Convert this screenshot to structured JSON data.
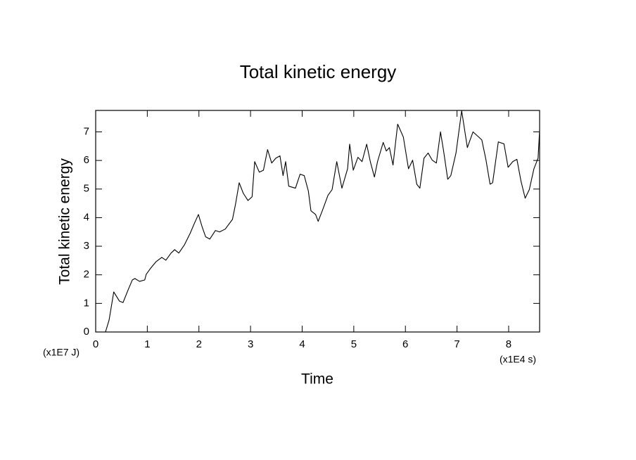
{
  "chart_data": {
    "type": "line",
    "title": "Total kinetic energy",
    "x_label": "Time",
    "y_label": "Total kinetic energy",
    "x_unit": "(x1E4 s)",
    "y_unit": "(x1E7 J)",
    "xlim": [
      0,
      8.6
    ],
    "ylim": [
      0,
      7.75
    ],
    "xticks": [
      0,
      1,
      2,
      3,
      4,
      5,
      6,
      7,
      8
    ],
    "yticks": [
      0,
      1,
      2,
      3,
      4,
      5,
      6,
      7
    ],
    "color": "#000000",
    "x": [
      0.19,
      0.26,
      0.35,
      0.46,
      0.53,
      0.63,
      0.71,
      0.76,
      0.85,
      0.95,
      0.98,
      1.06,
      1.17,
      1.28,
      1.36,
      1.46,
      1.53,
      1.61,
      1.72,
      1.83,
      1.91,
      1.99,
      2.06,
      2.13,
      2.21,
      2.32,
      2.4,
      2.51,
      2.65,
      2.71,
      2.78,
      2.86,
      2.95,
      3.03,
      3.08,
      3.17,
      3.25,
      3.33,
      3.41,
      3.49,
      3.57,
      3.63,
      3.68,
      3.74,
      3.87,
      3.96,
      4.04,
      4.12,
      4.17,
      4.26,
      4.31,
      4.39,
      4.5,
      4.58,
      4.67,
      4.77,
      4.88,
      4.92,
      4.99,
      5.08,
      5.16,
      5.25,
      5.32,
      5.4,
      5.46,
      5.57,
      5.63,
      5.69,
      5.76,
      5.85,
      5.96,
      6.06,
      6.14,
      6.22,
      6.28,
      6.36,
      6.44,
      6.52,
      6.6,
      6.68,
      6.74,
      6.82,
      6.88,
      6.98,
      7.09,
      7.2,
      7.31,
      7.48,
      7.56,
      7.64,
      7.69,
      7.8,
      7.91,
      7.99,
      8.08,
      8.16,
      8.24,
      8.32,
      8.4,
      8.49,
      8.57,
      8.6
    ],
    "values": [
      0,
      0.42,
      1.4,
      1.08,
      1.03,
      1.48,
      1.82,
      1.87,
      1.77,
      1.82,
      2.02,
      2.22,
      2.46,
      2.61,
      2.51,
      2.76,
      2.88,
      2.76,
      3.05,
      3.45,
      3.79,
      4.11,
      3.69,
      3.33,
      3.25,
      3.55,
      3.5,
      3.6,
      3.94,
      4.48,
      5.22,
      4.85,
      4.6,
      4.73,
      5.96,
      5.59,
      5.66,
      6.38,
      5.91,
      6.08,
      6.16,
      5.47,
      5.96,
      5.1,
      5.03,
      5.52,
      5.47,
      4.93,
      4.24,
      4.11,
      3.87,
      4.24,
      4.78,
      4.98,
      5.96,
      5.03,
      5.71,
      6.57,
      5.66,
      6.11,
      5.96,
      6.57,
      5.96,
      5.42,
      5.96,
      6.63,
      6.33,
      6.45,
      5.84,
      7.27,
      6.82,
      5.71,
      6.01,
      5.17,
      5.03,
      6.08,
      6.26,
      6.01,
      5.91,
      7.0,
      6.33,
      5.34,
      5.47,
      6.26,
      7.74,
      6.45,
      7.0,
      6.72,
      6.03,
      5.17,
      5.22,
      6.65,
      6.58,
      5.76,
      5.96,
      6.04,
      5.27,
      4.68,
      4.98,
      5.71,
      6.08,
      7.05
    ]
  }
}
